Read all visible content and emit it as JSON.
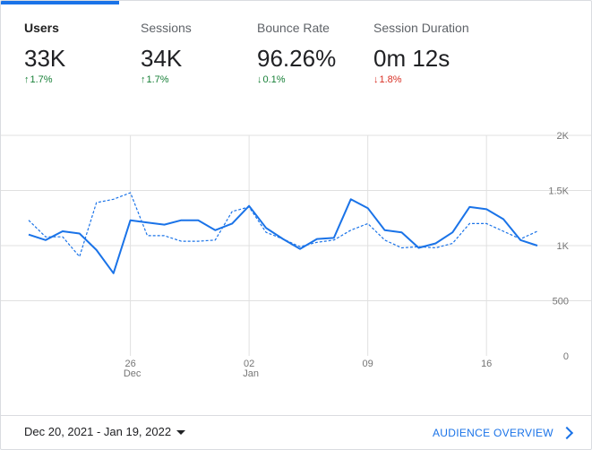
{
  "metrics": [
    {
      "label": "Users",
      "value": "33K",
      "change": "1.7%",
      "direction": "up",
      "active": true
    },
    {
      "label": "Sessions",
      "value": "34K",
      "change": "1.7%",
      "direction": "up",
      "active": false
    },
    {
      "label": "Bounce Rate",
      "value": "96.26%",
      "change": "0.1%",
      "direction": "down-good",
      "active": false
    },
    {
      "label": "Session Duration",
      "value": "0m 12s",
      "change": "1.8%",
      "direction": "down-bad",
      "active": false
    }
  ],
  "colors": {
    "accent": "#1a73e8",
    "good": "#188038",
    "bad": "#d93025",
    "grid": "#e0e0e0"
  },
  "chart_data": {
    "type": "line",
    "y_tick_labels": [
      "0",
      "500",
      "1K",
      "1.5K",
      "2K"
    ],
    "y_ticks": [
      0,
      500,
      1000,
      1500,
      2000
    ],
    "ylim": [
      0,
      2000
    ],
    "x_tick_labels": [
      {
        "day": "26",
        "month": "Dec",
        "index": 6
      },
      {
        "day": "02",
        "month": "Jan",
        "index": 13
      },
      {
        "day": "09",
        "month": "",
        "index": 20
      },
      {
        "day": "16",
        "month": "",
        "index": 27
      }
    ],
    "dates": [
      "Dec 20",
      "Dec 21",
      "Dec 22",
      "Dec 23",
      "Dec 24",
      "Dec 25",
      "Dec 26",
      "Dec 27",
      "Dec 28",
      "Dec 29",
      "Dec 30",
      "Dec 31",
      "Jan 1",
      "Jan 2",
      "Jan 3",
      "Jan 4",
      "Jan 5",
      "Jan 6",
      "Jan 7",
      "Jan 8",
      "Jan 9",
      "Jan 10",
      "Jan 11",
      "Jan 12",
      "Jan 13",
      "Jan 14",
      "Jan 15",
      "Jan 16",
      "Jan 17",
      "Jan 18",
      "Jan 19"
    ],
    "series": [
      {
        "style": "solid",
        "values": [
          1100,
          1050,
          1130,
          1110,
          960,
          750,
          1230,
          1210,
          1190,
          1230,
          1230,
          1140,
          1200,
          1360,
          1160,
          1060,
          970,
          1060,
          1070,
          1420,
          1340,
          1140,
          1120,
          980,
          1020,
          1120,
          1350,
          1330,
          1240,
          1050,
          1000
        ]
      },
      {
        "style": "dashed",
        "values": [
          1230,
          1080,
          1080,
          900,
          1390,
          1420,
          1480,
          1090,
          1090,
          1040,
          1040,
          1050,
          1310,
          1350,
          1120,
          1060,
          990,
          1030,
          1050,
          1140,
          1200,
          1050,
          980,
          990,
          980,
          1020,
          1200,
          1200,
          1130,
          1060,
          1130
        ]
      }
    ]
  },
  "footer": {
    "date_range": "Dec 20, 2021 - Jan 19, 2022",
    "overview_link": "AUDIENCE OVERVIEW"
  }
}
